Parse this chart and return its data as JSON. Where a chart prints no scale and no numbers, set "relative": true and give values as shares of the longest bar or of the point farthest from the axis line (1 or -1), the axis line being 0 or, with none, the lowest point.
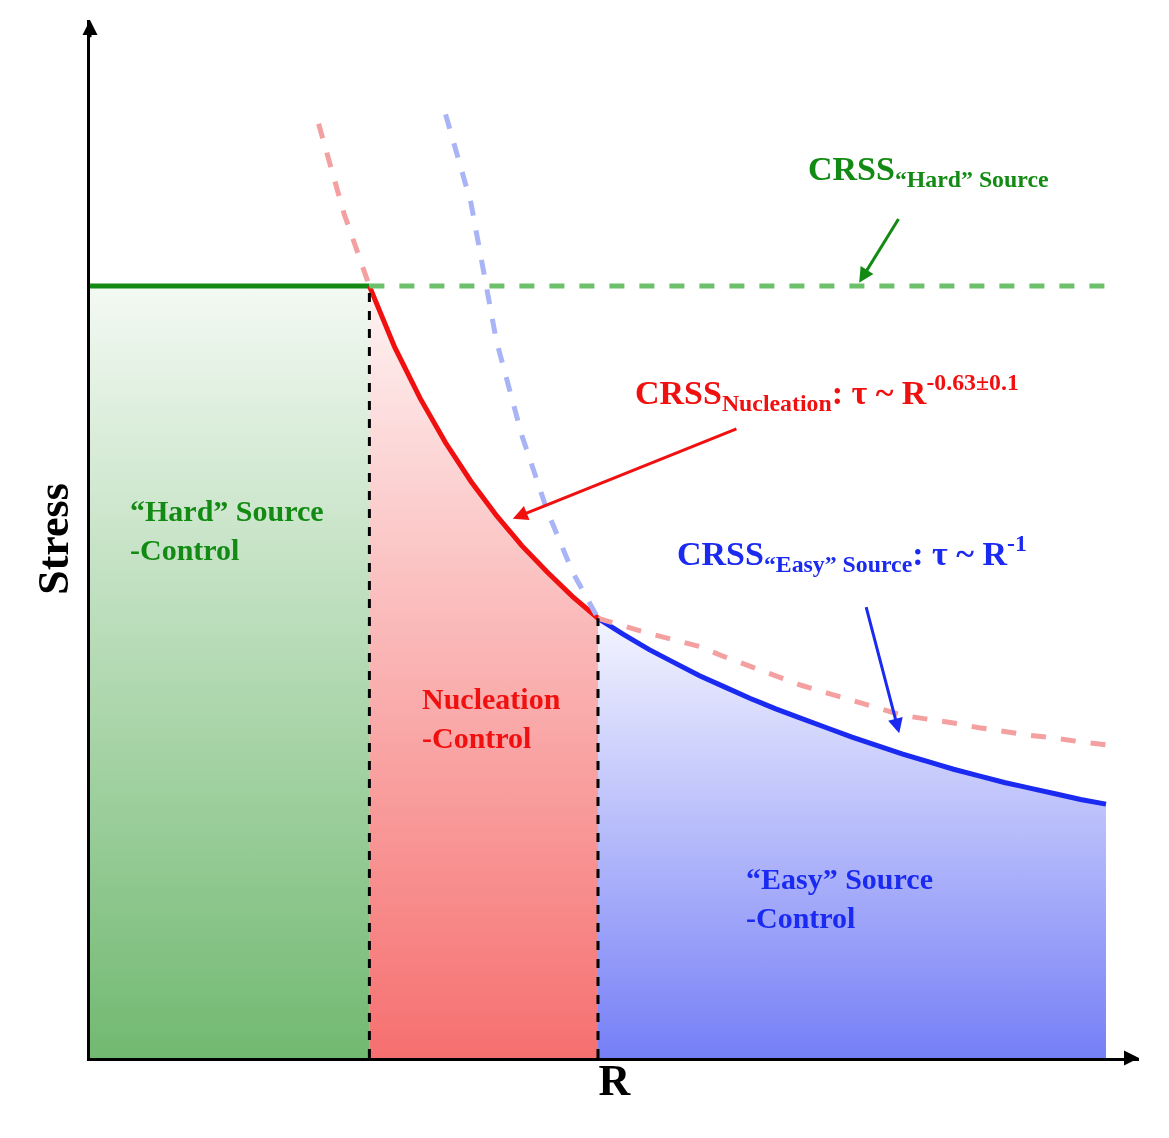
{
  "chart_data": {
    "type": "line",
    "relative": true,
    "xlabel": "R",
    "ylabel": "Stress",
    "categories": [
      null,
      null,
      null,
      null,
      null,
      null,
      null,
      null,
      null,
      null,
      null,
      null,
      null,
      null,
      null,
      null,
      null,
      null,
      null,
      null,
      null,
      null,
      null,
      null,
      null,
      null,
      null,
      null,
      null,
      null,
      null,
      null,
      null,
      null,
      null,
      null,
      null,
      null,
      null,
      null,
      null
    ],
    "series": [
      {
        "type": "area",
        "color": "#138a13",
        "values": [
          0.818,
          0.818,
          0.818,
          0.818,
          0.818,
          0.818,
          0.818,
          0.818,
          0.818,
          0.818,
          0.818,
          0.818,
          null,
          null,
          null,
          null,
          null,
          null,
          null,
          null,
          null,
          null,
          null,
          null,
          null,
          null,
          null,
          null,
          null,
          null,
          null,
          null,
          null,
          null,
          null,
          null,
          null,
          null,
          null,
          null,
          null
        ]
      },
      {
        "type": "area",
        "color": "#f01010",
        "values": [
          null,
          null,
          null,
          null,
          null,
          null,
          null,
          null,
          null,
          null,
          null,
          0.818,
          0.753,
          0.699,
          0.652,
          0.611,
          0.575,
          0.543,
          0.515,
          0.489,
          0.466,
          null,
          null,
          null,
          null,
          null,
          null,
          null,
          null,
          null,
          null,
          null,
          null,
          null,
          null,
          null,
          null,
          null,
          null,
          null,
          null
        ]
      },
      {
        "type": "area",
        "color": "#1a2af0",
        "values": [
          null,
          null,
          null,
          null,
          null,
          null,
          null,
          null,
          null,
          null,
          null,
          null,
          null,
          null,
          null,
          null,
          null,
          null,
          null,
          null,
          0.466,
          0.449,
          0.433,
          0.419,
          0.405,
          0.393,
          0.381,
          0.37,
          0.36,
          0.35,
          0.34,
          0.331,
          0.322,
          0.314,
          0.306,
          0.299,
          0.292,
          0.286,
          0.28,
          0.274,
          0.269
        ]
      },
      {
        "line_style": "dashed",
        "color": "#6cc06c",
        "values": [
          null,
          null,
          null,
          null,
          null,
          null,
          null,
          null,
          null,
          null,
          null,
          0.818,
          0.818,
          0.818,
          0.818,
          0.818,
          0.818,
          0.818,
          0.818,
          0.818,
          0.818,
          0.818,
          0.818,
          0.818,
          0.818,
          0.818,
          0.818,
          0.818,
          0.818,
          0.818,
          0.818,
          0.818,
          0.818,
          0.818,
          0.818,
          0.818,
          0.818,
          0.818,
          0.818,
          0.818,
          0.818
        ]
      },
      {
        "line_style": "dashed",
        "color": "#f5a0a0",
        "values": [
          null,
          null,
          null,
          null,
          null,
          null,
          null,
          null,
          null,
          0.99,
          0.895,
          0.818,
          null,
          null,
          null,
          null,
          null,
          null,
          null,
          null,
          0.466,
          0.458,
          0.45,
          0.443,
          0.436,
          0.425,
          0.415,
          0.405,
          0.395,
          0.387,
          0.379,
          0.371,
          0.363,
          0.359,
          0.355,
          0.35,
          0.346,
          0.342,
          0.339,
          0.335,
          0.332
        ]
      },
      {
        "line_style": "dashed",
        "color": "#a8b4f5",
        "values": [
          null,
          null,
          null,
          null,
          null,
          null,
          null,
          null,
          null,
          null,
          null,
          null,
          null,
          null,
          1.0,
          0.906,
          0.76,
          0.66,
          0.58,
          0.515,
          0.466,
          null,
          null,
          null,
          null,
          null,
          null,
          null,
          null,
          null,
          null,
          null,
          null,
          null,
          null,
          null,
          null,
          null,
          null,
          null,
          null
        ]
      }
    ],
    "annotations": [
      "CRSS$_{“Hard” Source}$",
      "CRSS$_{Nucleation}$: τ ~ R$^{-0.63±0.1}$",
      "CRSS$_{“Easy” Source}$: τ ~ R$^{-1}$",
      "“Hard” Source\n-Control",
      "Nucleation\n-Control",
      "“Easy” Source\n-Control"
    ]
  }
}
